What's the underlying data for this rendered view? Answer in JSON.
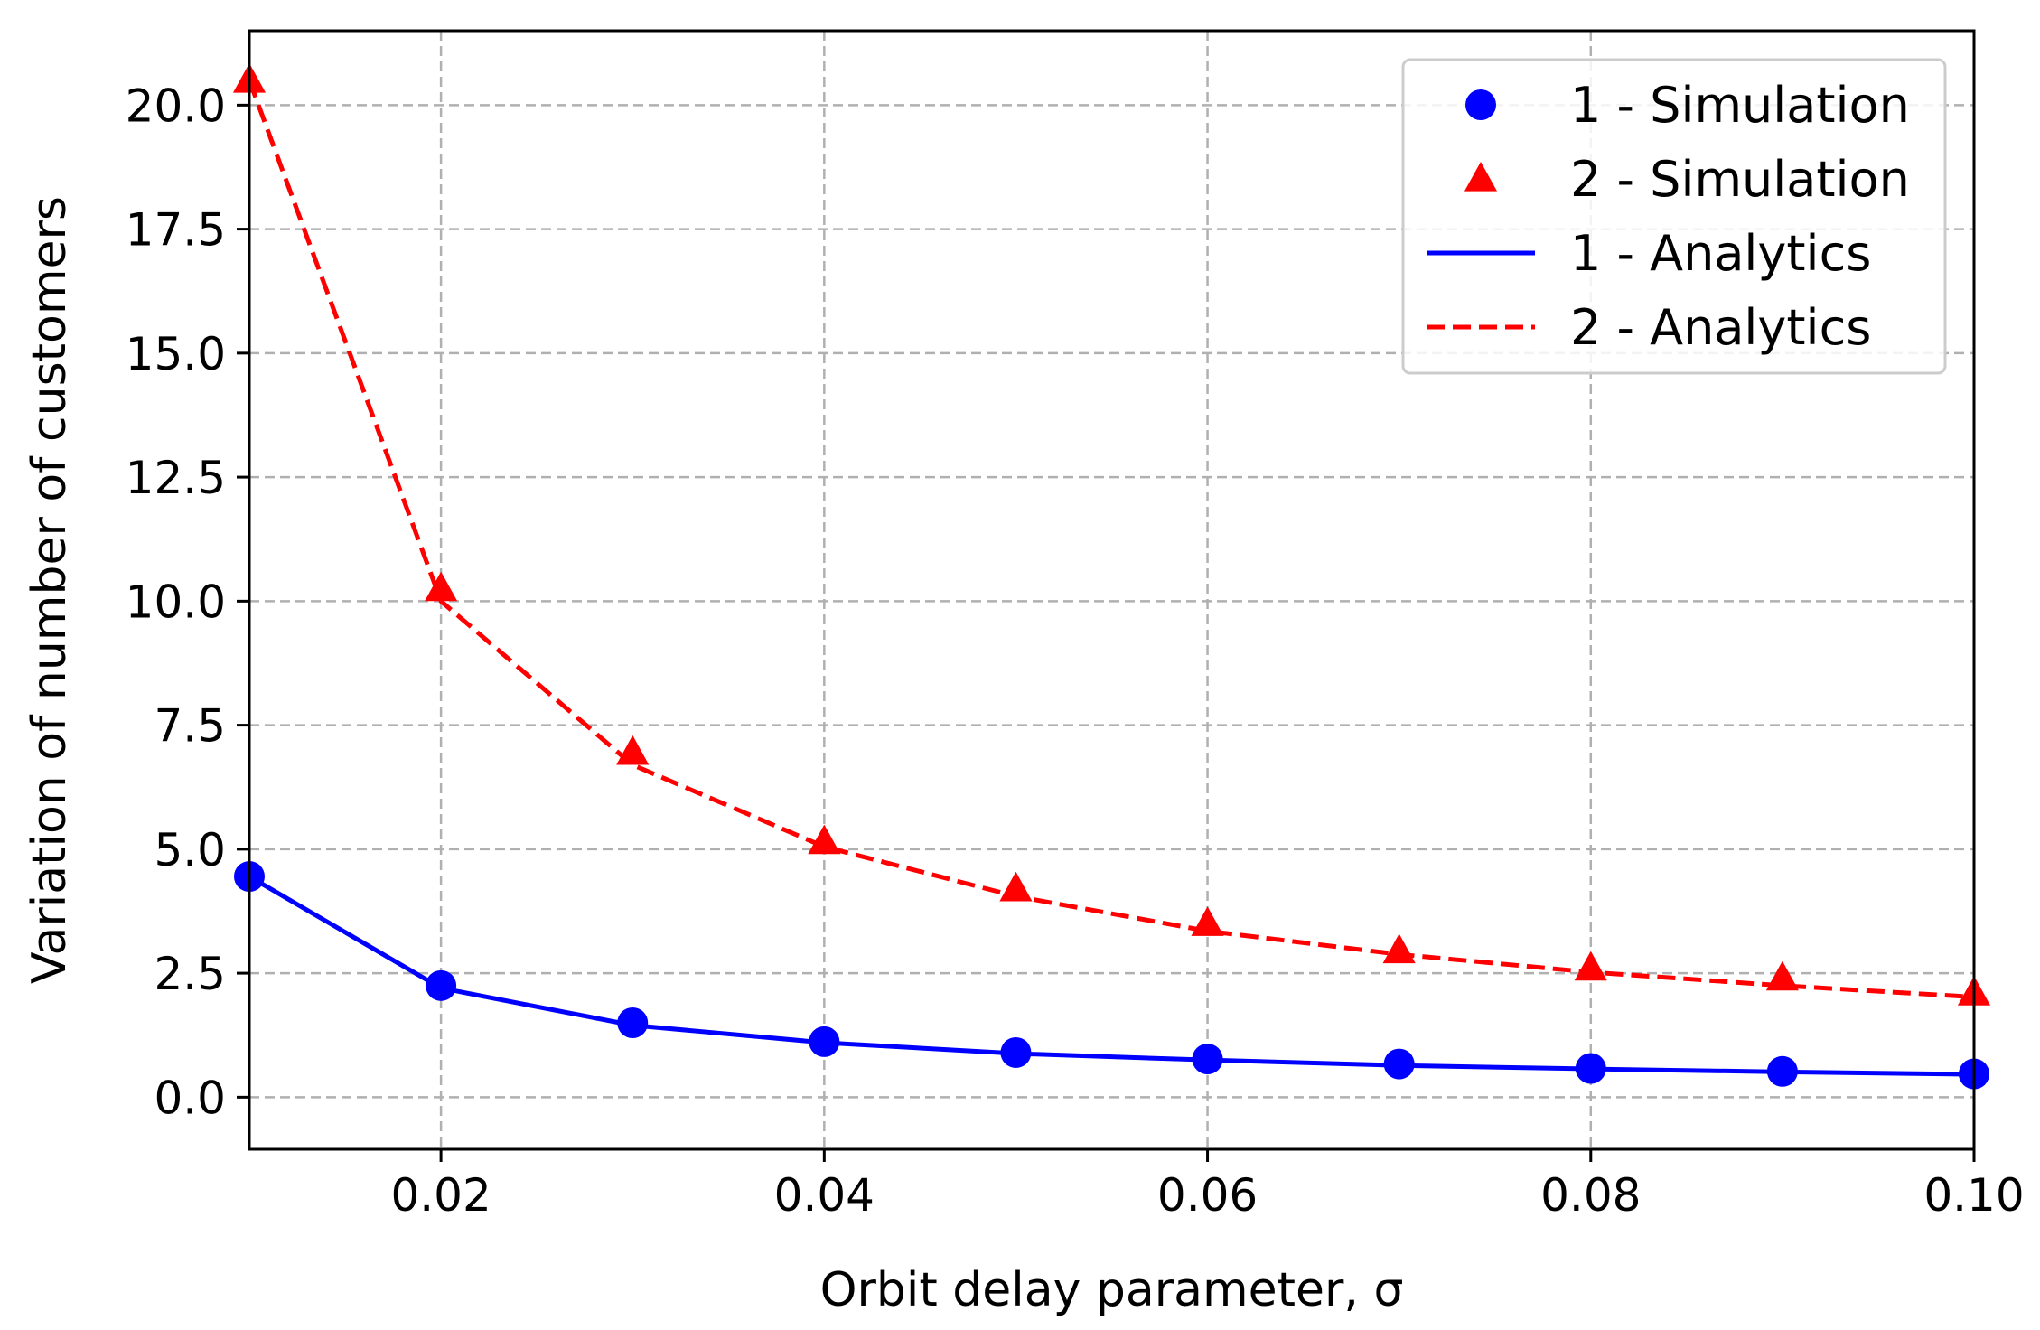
{
  "chart_data": {
    "type": "line",
    "title": "",
    "xlabel": "Orbit delay parameter, σ",
    "ylabel": "Variation of number of customers",
    "xlim": [
      0.01,
      0.1
    ],
    "ylim": [
      -1.05,
      21.5
    ],
    "x_ticks": [
      0.02,
      0.04,
      0.06,
      0.08,
      0.1
    ],
    "x_tick_labels": [
      "0.02",
      "0.04",
      "0.06",
      "0.08",
      "0.10"
    ],
    "y_ticks": [
      0.0,
      2.5,
      5.0,
      7.5,
      10.0,
      12.5,
      15.0,
      17.5,
      20.0
    ],
    "y_tick_labels": [
      "0.0",
      "2.5",
      "5.0",
      "7.5",
      "10.0",
      "12.5",
      "15.0",
      "17.5",
      "20.0"
    ],
    "grid": true,
    "legend_position": "top-right",
    "x": [
      0.01,
      0.02,
      0.03,
      0.04,
      0.05,
      0.06,
      0.07,
      0.08,
      0.09,
      0.1
    ],
    "series": [
      {
        "name": "1 - Simulation",
        "style": "markers",
        "marker": "circle",
        "color": "#0000ff",
        "values": [
          4.45,
          2.25,
          1.5,
          1.12,
          0.9,
          0.77,
          0.67,
          0.58,
          0.52,
          0.47
        ]
      },
      {
        "name": "2 - Simulation",
        "style": "markers",
        "marker": "triangle",
        "color": "#ff0000",
        "values": [
          20.5,
          10.25,
          6.95,
          5.15,
          4.2,
          3.5,
          2.95,
          2.6,
          2.4,
          2.1
        ]
      },
      {
        "name": "1 - Analytics",
        "style": "solid-line",
        "color": "#0000ff",
        "values": [
          4.45,
          2.2,
          1.45,
          1.1,
          0.88,
          0.75,
          0.64,
          0.57,
          0.51,
          0.46
        ]
      },
      {
        "name": "2 - Analytics",
        "style": "dashed-line",
        "color": "#ff0000",
        "values": [
          20.5,
          10.0,
          6.7,
          5.05,
          4.05,
          3.35,
          2.88,
          2.52,
          2.25,
          2.02
        ]
      }
    ]
  }
}
